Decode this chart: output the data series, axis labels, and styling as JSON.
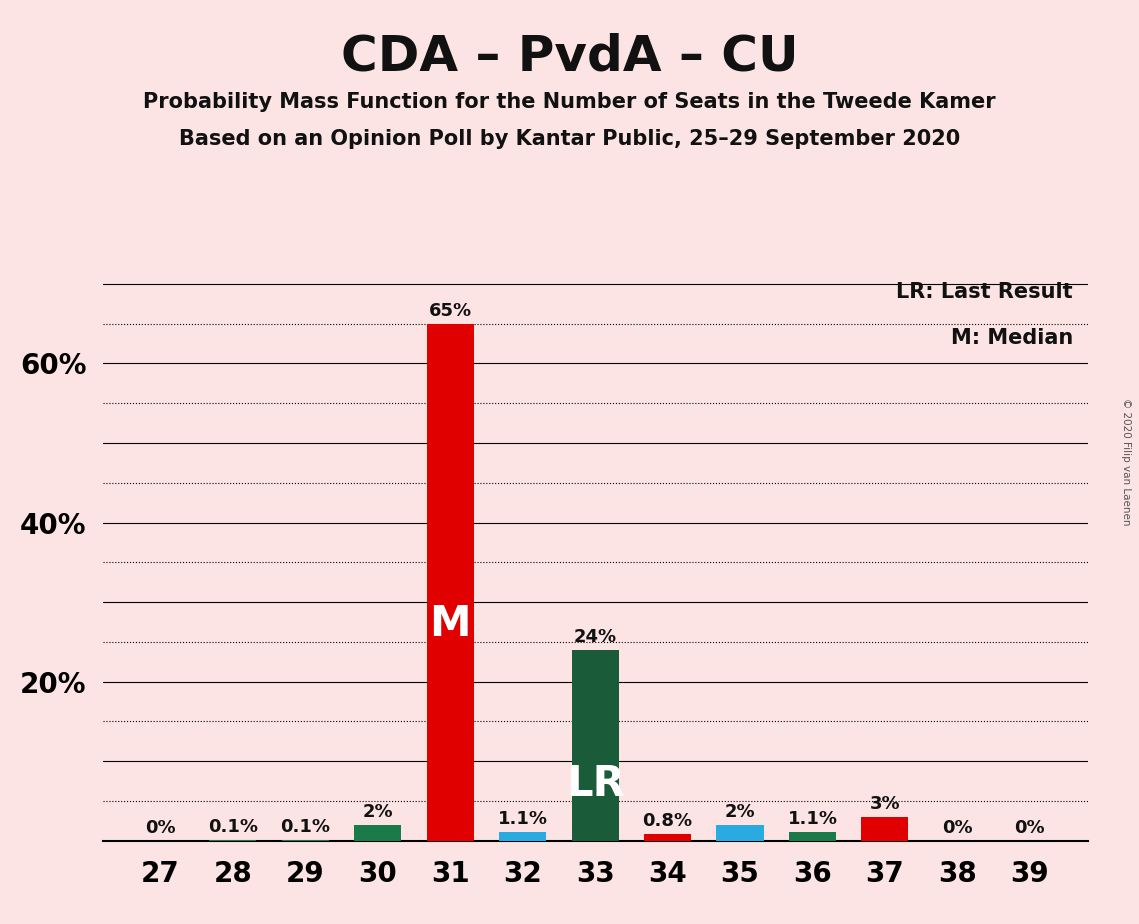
{
  "title": "CDA – PvdA – CU",
  "subtitle1": "Probability Mass Function for the Number of Seats in the Tweede Kamer",
  "subtitle2": "Based on an Opinion Poll by Kantar Public, 25–29 September 2020",
  "copyright": "© 2020 Filip van Laenen",
  "legend_lr": "LR: Last Result",
  "legend_m": "M: Median",
  "background_color": "#fce4e4",
  "seats": [
    27,
    28,
    29,
    30,
    31,
    32,
    33,
    34,
    35,
    36,
    37,
    38,
    39
  ],
  "values": [
    0.0,
    0.001,
    0.001,
    0.02,
    0.65,
    0.011,
    0.24,
    0.008,
    0.02,
    0.011,
    0.03,
    0.0,
    0.0
  ],
  "labels": [
    "0%",
    "0.1%",
    "0.1%",
    "2%",
    "65%",
    "1.1%",
    "24%",
    "0.8%",
    "2%",
    "1.1%",
    "3%",
    "0%",
    "0%"
  ],
  "colors": [
    "#1a7a4a",
    "#1a7a4a",
    "#1a7a4a",
    "#1a7a4a",
    "#e00000",
    "#29aae1",
    "#1a5c3a",
    "#e00000",
    "#29aae1",
    "#1a7a4a",
    "#e00000",
    "#1a7a4a",
    "#1a7a4a"
  ],
  "median_seat": 31,
  "lr_seat": 33,
  "median_label": "M",
  "lr_label": "LR",
  "ylim": [
    0,
    0.72
  ],
  "solid_gridlines": [
    0.1,
    0.2,
    0.3,
    0.4,
    0.5,
    0.6,
    0.7
  ],
  "dotted_gridlines": [
    0.05,
    0.15,
    0.25,
    0.35,
    0.45,
    0.55,
    0.65
  ],
  "ytick_positions": [
    0.2,
    0.4,
    0.6
  ],
  "ytick_labels": [
    "20%",
    "40%",
    "60%"
  ],
  "bar_width": 0.65
}
